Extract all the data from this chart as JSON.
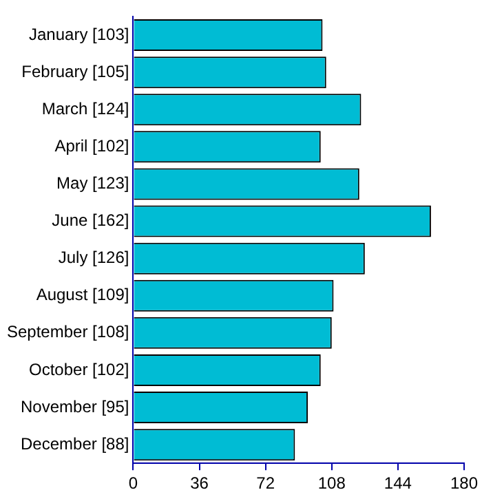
{
  "chart_data": {
    "type": "bar",
    "orientation": "horizontal",
    "categories": [
      "January [103]",
      "February [105]",
      "March [124]",
      "April [102]",
      "May [123]",
      "June [162]",
      "July [126]",
      "August [109]",
      "September [108]",
      "October [102]",
      "November [95]",
      "December [88]"
    ],
    "values": [
      103,
      105,
      124,
      102,
      123,
      162,
      126,
      109,
      108,
      102,
      95,
      88
    ],
    "color": "#00bcd4",
    "xlim": [
      0,
      180
    ],
    "xticks": [
      0,
      36,
      72,
      108,
      144,
      180
    ],
    "grid": false,
    "legend": false
  }
}
